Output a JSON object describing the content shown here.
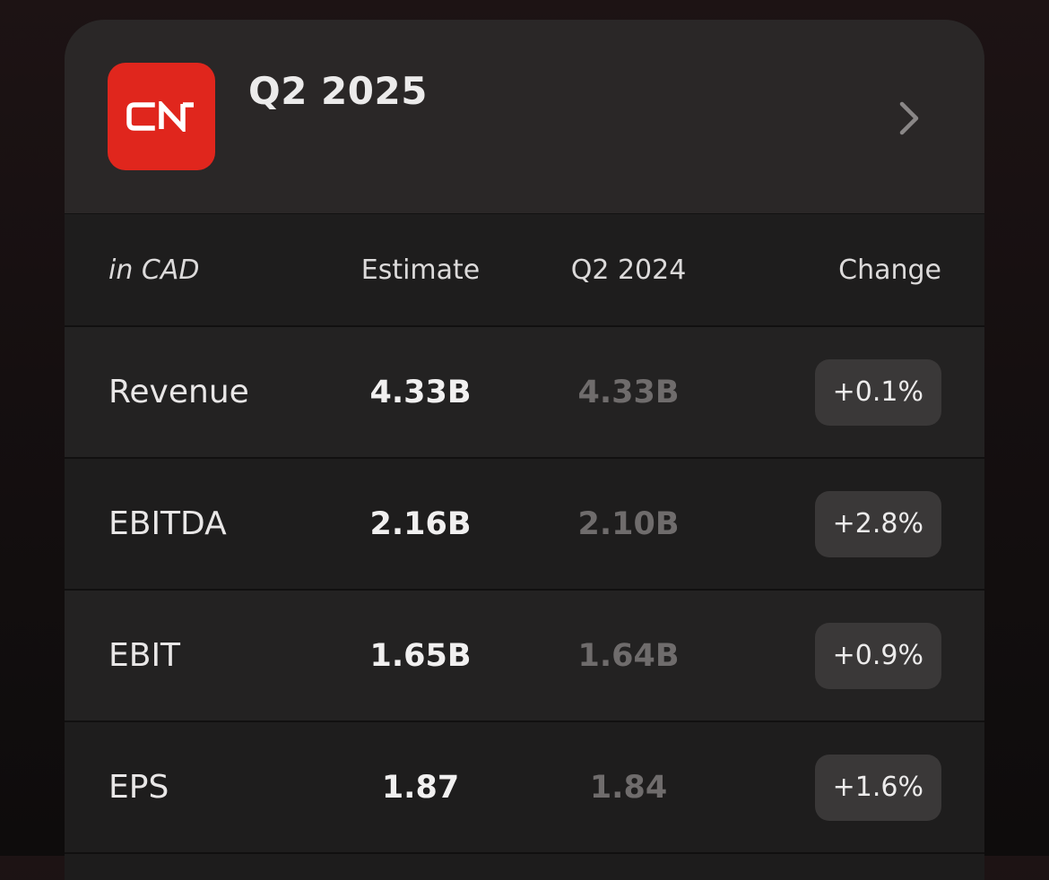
{
  "header": {
    "logo_alt": "CN",
    "title": "Q2 2025"
  },
  "colors": {
    "logo_bg": "#e0261d"
  },
  "icons": {
    "logo": "cn-logo-icon",
    "navigate": "chevron-right-icon"
  },
  "table": {
    "headers": {
      "currency": "in CAD",
      "estimate": "Estimate",
      "previous": "Q2 2024",
      "change": "Change"
    },
    "rows": [
      {
        "label": "Revenue",
        "estimate": "4.33B",
        "previous": "4.33B",
        "change": "+0.1%"
      },
      {
        "label": "EBITDA",
        "estimate": "2.16B",
        "previous": "2.10B",
        "change": "+2.8%"
      },
      {
        "label": "EBIT",
        "estimate": "1.65B",
        "previous": "1.64B",
        "change": "+0.9%"
      },
      {
        "label": "EPS",
        "estimate": "1.87",
        "previous": "1.84",
        "change": "+1.6%"
      }
    ]
  }
}
